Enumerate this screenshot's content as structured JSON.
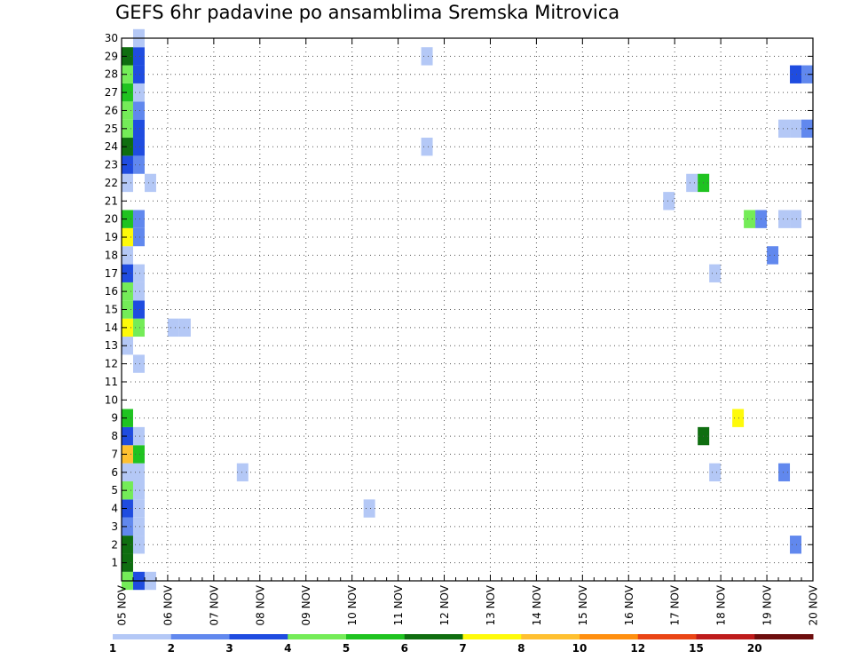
{
  "chart_data": {
    "type": "heatmap",
    "title": "GEFS 6hr padavine po ansamblima Sremska Mitrovica",
    "x_labels": [
      "05 NOV",
      "06 NOV",
      "07 NOV",
      "08 NOV",
      "09 NOV",
      "10 NOV",
      "11 NOV",
      "12 NOV",
      "13 NOV",
      "14 NOV",
      "15 NOV",
      "16 NOV",
      "17 NOV",
      "18 NOV",
      "19 NOV",
      "20 NOV"
    ],
    "x_range_days": [
      0,
      15
    ],
    "steps_per_day": 4,
    "y_range": [
      0,
      30
    ],
    "y_ticks": [
      1,
      2,
      3,
      4,
      5,
      6,
      7,
      8,
      9,
      10,
      11,
      12,
      13,
      14,
      15,
      16,
      17,
      18,
      19,
      20,
      21,
      22,
      23,
      24,
      25,
      26,
      27,
      28,
      29,
      30
    ],
    "grid": true,
    "legend": {
      "placement": "bottom",
      "labels": [
        "1",
        "2",
        "3",
        "4",
        "5",
        "6",
        "7",
        "8",
        "10",
        "12",
        "15",
        "20"
      ],
      "colors": [
        "#b4c8f6",
        "#6188ee",
        "#1f4ce0",
        "#74ec58",
        "#1fc320",
        "#0f6e10",
        "#fefa0a",
        "#ffc030",
        "#ff8f0f",
        "#ea4515",
        "#be1b1b",
        "#6e0d0d"
      ]
    },
    "cells": [
      {
        "t": 0,
        "m": 0,
        "c": 4
      },
      {
        "t": 1,
        "m": 0,
        "c": 3
      },
      {
        "t": 2,
        "m": 0,
        "c": 1
      },
      {
        "t": 0,
        "m": 1,
        "c": 6
      },
      {
        "t": 0,
        "m": 2,
        "c": 6
      },
      {
        "t": 1,
        "m": 2,
        "c": 1
      },
      {
        "t": 0,
        "m": 3,
        "c": 2
      },
      {
        "t": 1,
        "m": 3,
        "c": 1
      },
      {
        "t": 0,
        "m": 4,
        "c": 3
      },
      {
        "t": 1,
        "m": 4,
        "c": 1
      },
      {
        "t": 0,
        "m": 5,
        "c": 4
      },
      {
        "t": 1,
        "m": 5,
        "c": 1
      },
      {
        "t": 0,
        "m": 6,
        "c": 1
      },
      {
        "t": 1,
        "m": 6,
        "c": 1
      },
      {
        "t": 0,
        "m": 7,
        "c": 8
      },
      {
        "t": 1,
        "m": 7,
        "c": 5
      },
      {
        "t": 0,
        "m": 8,
        "c": 3
      },
      {
        "t": 1,
        "m": 8,
        "c": 1
      },
      {
        "t": 0,
        "m": 9,
        "c": 5
      },
      {
        "t": 1,
        "m": 12,
        "c": 1
      },
      {
        "t": 0,
        "m": 13,
        "c": 1
      },
      {
        "t": 0,
        "m": 14,
        "c": 7
      },
      {
        "t": 1,
        "m": 14,
        "c": 4
      },
      {
        "t": 0,
        "m": 15,
        "c": 4
      },
      {
        "t": 1,
        "m": 15,
        "c": 3
      },
      {
        "t": 0,
        "m": 16,
        "c": 4
      },
      {
        "t": 1,
        "m": 16,
        "c": 1
      },
      {
        "t": 0,
        "m": 17,
        "c": 3
      },
      {
        "t": 1,
        "m": 17,
        "c": 1
      },
      {
        "t": 0,
        "m": 18,
        "c": 1
      },
      {
        "t": 0,
        "m": 19,
        "c": 7
      },
      {
        "t": 1,
        "m": 19,
        "c": 2
      },
      {
        "t": 0,
        "m": 20,
        "c": 5
      },
      {
        "t": 1,
        "m": 20,
        "c": 2
      },
      {
        "t": 0,
        "m": 22,
        "c": 1
      },
      {
        "t": 2,
        "m": 22,
        "c": 1
      },
      {
        "t": 0,
        "m": 23,
        "c": 3
      },
      {
        "t": 1,
        "m": 23,
        "c": 2
      },
      {
        "t": 0,
        "m": 24,
        "c": 6
      },
      {
        "t": 1,
        "m": 24,
        "c": 3
      },
      {
        "t": 0,
        "m": 25,
        "c": 4
      },
      {
        "t": 1,
        "m": 25,
        "c": 3
      },
      {
        "t": 0,
        "m": 26,
        "c": 4
      },
      {
        "t": 1,
        "m": 26,
        "c": 2
      },
      {
        "t": 0,
        "m": 27,
        "c": 5
      },
      {
        "t": 1,
        "m": 27,
        "c": 1
      },
      {
        "t": 0,
        "m": 28,
        "c": 4
      },
      {
        "t": 1,
        "m": 28,
        "c": 3
      },
      {
        "t": 0,
        "m": 29,
        "c": 6
      },
      {
        "t": 1,
        "m": 29,
        "c": 3
      },
      {
        "t": 1,
        "m": 30,
        "c": 1
      },
      {
        "t": 4,
        "m": 14,
        "c": 1
      },
      {
        "t": 5,
        "m": 14,
        "c": 1
      },
      {
        "t": 10,
        "m": 6,
        "c": 1
      },
      {
        "t": 21,
        "m": 4,
        "c": 1
      },
      {
        "t": 26,
        "m": 24,
        "c": 1
      },
      {
        "t": 26,
        "m": 29,
        "c": 1
      },
      {
        "t": 47,
        "m": 21,
        "c": 1
      },
      {
        "t": 49,
        "m": 22,
        "c": 1
      },
      {
        "t": 50,
        "m": 22,
        "c": 5
      },
      {
        "t": 50,
        "m": 8,
        "c": 6
      },
      {
        "t": 51,
        "m": 6,
        "c": 1
      },
      {
        "t": 51,
        "m": 17,
        "c": 1
      },
      {
        "t": 53,
        "m": 9,
        "c": 7
      },
      {
        "t": 54,
        "m": 20,
        "c": 4
      },
      {
        "t": 55,
        "m": 20,
        "c": 2
      },
      {
        "t": 56,
        "m": 18,
        "c": 2
      },
      {
        "t": 57,
        "m": 6,
        "c": 2
      },
      {
        "t": 57,
        "m": 20,
        "c": 1
      },
      {
        "t": 58,
        "m": 20,
        "c": 1
      },
      {
        "t": 57,
        "m": 25,
        "c": 1
      },
      {
        "t": 58,
        "m": 25,
        "c": 1
      },
      {
        "t": 59,
        "m": 25,
        "c": 2
      },
      {
        "t": 58,
        "m": 2,
        "c": 2
      },
      {
        "t": 58,
        "m": 28,
        "c": 3
      },
      {
        "t": 59,
        "m": 28,
        "c": 2
      }
    ]
  }
}
